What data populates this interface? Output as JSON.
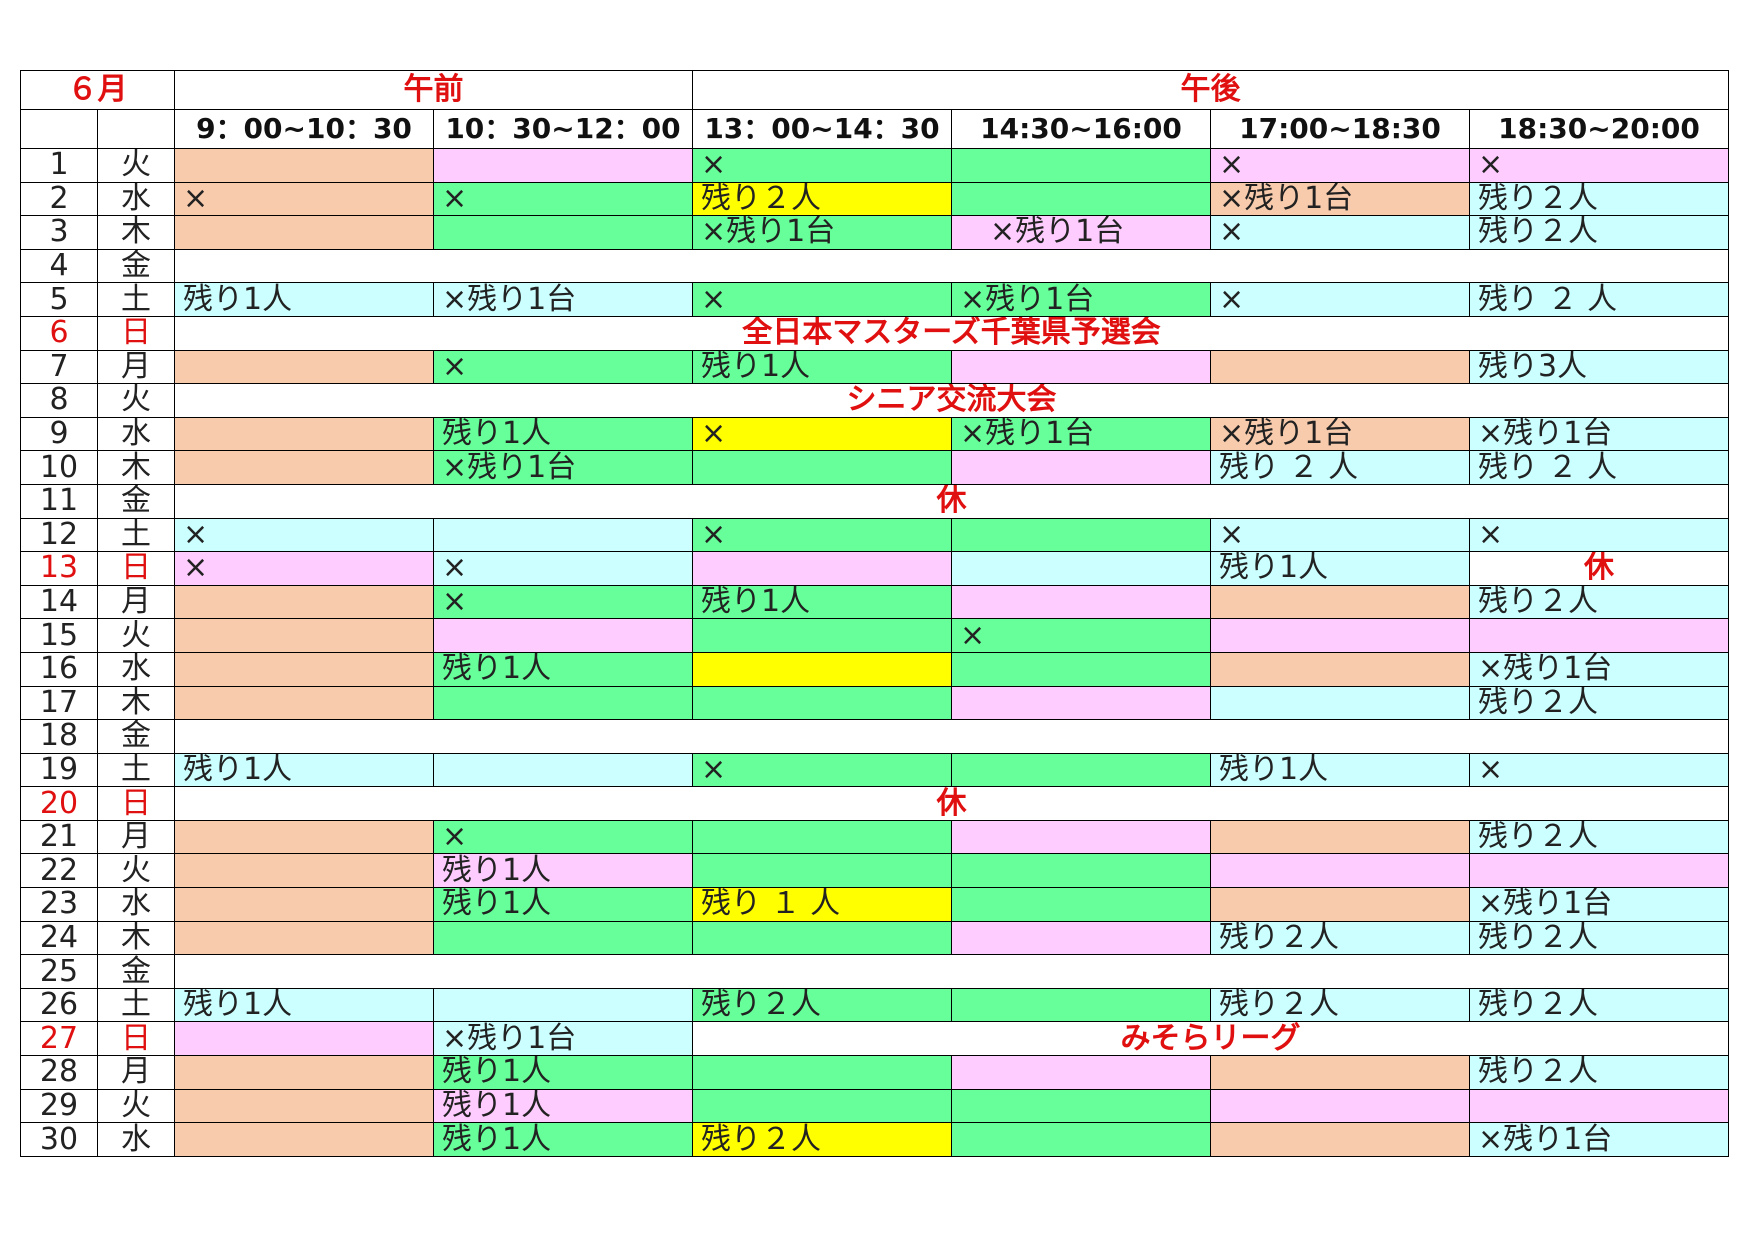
{
  "header": {
    "month": "６月",
    "am_label": "午前",
    "pm_label": "午後",
    "time_slots": [
      "9：00~10：30",
      "10：30~12：00",
      "13：00~14：30",
      "14:30~16:00",
      "17:00~18:30",
      "18:30~20:00"
    ]
  },
  "colors": {
    "o": "#f8cbad",
    "p": "#ffccff",
    "g": "#66ff99",
    "c": "#ccffff",
    "y": "#ffff00",
    "w": "#ffffff",
    "accent_red": "#e01010"
  },
  "rows": [
    {
      "date": "1",
      "dow": "火",
      "cells": [
        [
          "",
          "o"
        ],
        [
          "",
          "p"
        ],
        [
          "×",
          "g"
        ],
        [
          "",
          "g"
        ],
        [
          "×",
          "p"
        ],
        [
          "×",
          "p"
        ]
      ]
    },
    {
      "date": "2",
      "dow": "水",
      "cells": [
        [
          "×",
          "o"
        ],
        [
          "×",
          "g"
        ],
        [
          "残り２人",
          "y"
        ],
        [
          "",
          "g"
        ],
        [
          "×残り1台",
          "o"
        ],
        [
          "残り２人",
          "c"
        ]
      ]
    },
    {
      "date": "3",
      "dow": "木",
      "cells": [
        [
          "",
          "o"
        ],
        [
          "",
          "g"
        ],
        [
          "×残り1台",
          "g"
        ],
        [
          "　×残り1台",
          "p"
        ],
        [
          "×",
          "c"
        ],
        [
          "残り２人",
          "c"
        ]
      ]
    },
    {
      "date": "4",
      "dow": "金",
      "span": {
        "text": "",
        "start": 0,
        "cols": 6
      }
    },
    {
      "date": "5",
      "dow": "土",
      "cells": [
        [
          "残り1人",
          "c"
        ],
        [
          "×残り1台",
          "c"
        ],
        [
          "×",
          "g"
        ],
        [
          "×残り1台",
          "g"
        ],
        [
          "×",
          "c"
        ],
        [
          "残り ２ 人",
          "c"
        ]
      ]
    },
    {
      "date": "6",
      "dow": "日",
      "red": true,
      "span": {
        "text": "全日本マスターズ千葉県予選会",
        "start": 0,
        "cols": 6
      }
    },
    {
      "date": "7",
      "dow": "月",
      "cells": [
        [
          "",
          "o"
        ],
        [
          "×",
          "g"
        ],
        [
          "残り1人",
          "g"
        ],
        [
          "",
          "p"
        ],
        [
          "",
          "o"
        ],
        [
          "残り3人",
          "c"
        ]
      ]
    },
    {
      "date": "8",
      "dow": "火",
      "span": {
        "text": "シニア交流大会",
        "start": 0,
        "cols": 6
      }
    },
    {
      "date": "9",
      "dow": "水",
      "cells": [
        [
          "",
          "o"
        ],
        [
          "残り1人",
          "g"
        ],
        [
          "×",
          "y"
        ],
        [
          "×残り1台",
          "g"
        ],
        [
          "×残り1台",
          "o"
        ],
        [
          "×残り1台",
          "c"
        ]
      ]
    },
    {
      "date": "10",
      "dow": "木",
      "cells": [
        [
          "",
          "o"
        ],
        [
          "×残り1台",
          "g"
        ],
        [
          "",
          "g"
        ],
        [
          "",
          "p"
        ],
        [
          "残り ２ 人",
          "c"
        ],
        [
          "残り ２ 人",
          "c"
        ]
      ]
    },
    {
      "date": "11",
      "dow": "金",
      "span": {
        "text": "休",
        "start": 0,
        "cols": 6
      }
    },
    {
      "date": "12",
      "dow": "土",
      "cells": [
        [
          "×",
          "c"
        ],
        [
          "",
          "c"
        ],
        [
          "×",
          "g"
        ],
        [
          "",
          "g"
        ],
        [
          "×",
          "c"
        ],
        [
          "×",
          "c"
        ]
      ]
    },
    {
      "date": "13",
      "dow": "日",
      "red": true,
      "cells": [
        [
          "×",
          "p"
        ],
        [
          "×",
          "c"
        ],
        [
          "",
          "p"
        ],
        [
          "",
          "c"
        ],
        [
          "残り1人",
          "c"
        ],
        [
          "休",
          "w",
          true
        ]
      ]
    },
    {
      "date": "14",
      "dow": "月",
      "cells": [
        [
          "",
          "o"
        ],
        [
          "×",
          "g"
        ],
        [
          "残り1人",
          "g"
        ],
        [
          "",
          "p"
        ],
        [
          "",
          "o"
        ],
        [
          "残り２人",
          "c"
        ]
      ]
    },
    {
      "date": "15",
      "dow": "火",
      "cells": [
        [
          "",
          "o"
        ],
        [
          "",
          "p"
        ],
        [
          "",
          "g"
        ],
        [
          "×",
          "g"
        ],
        [
          "",
          "p"
        ],
        [
          "",
          "p"
        ]
      ]
    },
    {
      "date": "16",
      "dow": "水",
      "cells": [
        [
          "",
          "o"
        ],
        [
          "残り1人",
          "g"
        ],
        [
          "",
          "y"
        ],
        [
          "",
          "g"
        ],
        [
          "",
          "o"
        ],
        [
          "×残り1台",
          "c"
        ]
      ]
    },
    {
      "date": "17",
      "dow": "木",
      "cells": [
        [
          "",
          "o"
        ],
        [
          "",
          "g"
        ],
        [
          "",
          "g"
        ],
        [
          "",
          "p"
        ],
        [
          "",
          "c"
        ],
        [
          "残り２人",
          "c"
        ]
      ]
    },
    {
      "date": "18",
      "dow": "金",
      "span": {
        "text": "",
        "start": 0,
        "cols": 6
      }
    },
    {
      "date": "19",
      "dow": "土",
      "cells": [
        [
          "残り1人",
          "c"
        ],
        [
          "",
          "c"
        ],
        [
          "×",
          "g"
        ],
        [
          "",
          "g"
        ],
        [
          "残り1人",
          "c"
        ],
        [
          "×",
          "c"
        ]
      ]
    },
    {
      "date": "20",
      "dow": "日",
      "red": true,
      "span": {
        "text": "休",
        "start": 0,
        "cols": 6
      }
    },
    {
      "date": "21",
      "dow": "月",
      "cells": [
        [
          "",
          "o"
        ],
        [
          "×",
          "g"
        ],
        [
          "",
          "g"
        ],
        [
          "",
          "p"
        ],
        [
          "",
          "o"
        ],
        [
          "残り２人",
          "c"
        ]
      ]
    },
    {
      "date": "22",
      "dow": "火",
      "cells": [
        [
          "",
          "o"
        ],
        [
          "残り1人",
          "p"
        ],
        [
          "",
          "g"
        ],
        [
          "",
          "g"
        ],
        [
          "",
          "p"
        ],
        [
          "",
          "p"
        ]
      ]
    },
    {
      "date": "23",
      "dow": "水",
      "cells": [
        [
          "",
          "o"
        ],
        [
          "残り1人",
          "g"
        ],
        [
          "残り １ 人",
          "y"
        ],
        [
          "",
          "g"
        ],
        [
          "",
          "o"
        ],
        [
          "×残り1台",
          "c"
        ]
      ]
    },
    {
      "date": "24",
      "dow": "木",
      "cells": [
        [
          "",
          "o"
        ],
        [
          "",
          "g"
        ],
        [
          "",
          "g"
        ],
        [
          "",
          "p"
        ],
        [
          "残り２人",
          "c"
        ],
        [
          "残り２人",
          "c"
        ]
      ]
    },
    {
      "date": "25",
      "dow": "金",
      "span": {
        "text": "",
        "start": 0,
        "cols": 6
      }
    },
    {
      "date": "26",
      "dow": "土",
      "cells": [
        [
          "残り1人",
          "c"
        ],
        [
          "",
          "c"
        ],
        [
          "残り２人",
          "g"
        ],
        [
          "",
          "g"
        ],
        [
          "残り２人",
          "c"
        ],
        [
          "残り２人",
          "c"
        ]
      ]
    },
    {
      "date": "27",
      "dow": "日",
      "red": true,
      "cells": [
        [
          "",
          "p"
        ],
        [
          "×残り1台",
          "c"
        ]
      ],
      "span": {
        "text": "みそらリーグ",
        "start": 2,
        "cols": 4
      }
    },
    {
      "date": "28",
      "dow": "月",
      "cells": [
        [
          "",
          "o"
        ],
        [
          "残り1人",
          "g"
        ],
        [
          "",
          "g"
        ],
        [
          "",
          "p"
        ],
        [
          "",
          "o"
        ],
        [
          "残り２人",
          "c"
        ]
      ]
    },
    {
      "date": "29",
      "dow": "火",
      "cells": [
        [
          "",
          "o"
        ],
        [
          "残り1人",
          "p"
        ],
        [
          "",
          "g"
        ],
        [
          "",
          "g"
        ],
        [
          "",
          "p"
        ],
        [
          "",
          "p"
        ]
      ]
    },
    {
      "date": "30",
      "dow": "水",
      "cells": [
        [
          "",
          "o"
        ],
        [
          "残り1人",
          "g"
        ],
        [
          "残り２人",
          "y"
        ],
        [
          "",
          "g"
        ],
        [
          "",
          "o"
        ],
        [
          "×残り1台",
          "c"
        ]
      ]
    }
  ]
}
